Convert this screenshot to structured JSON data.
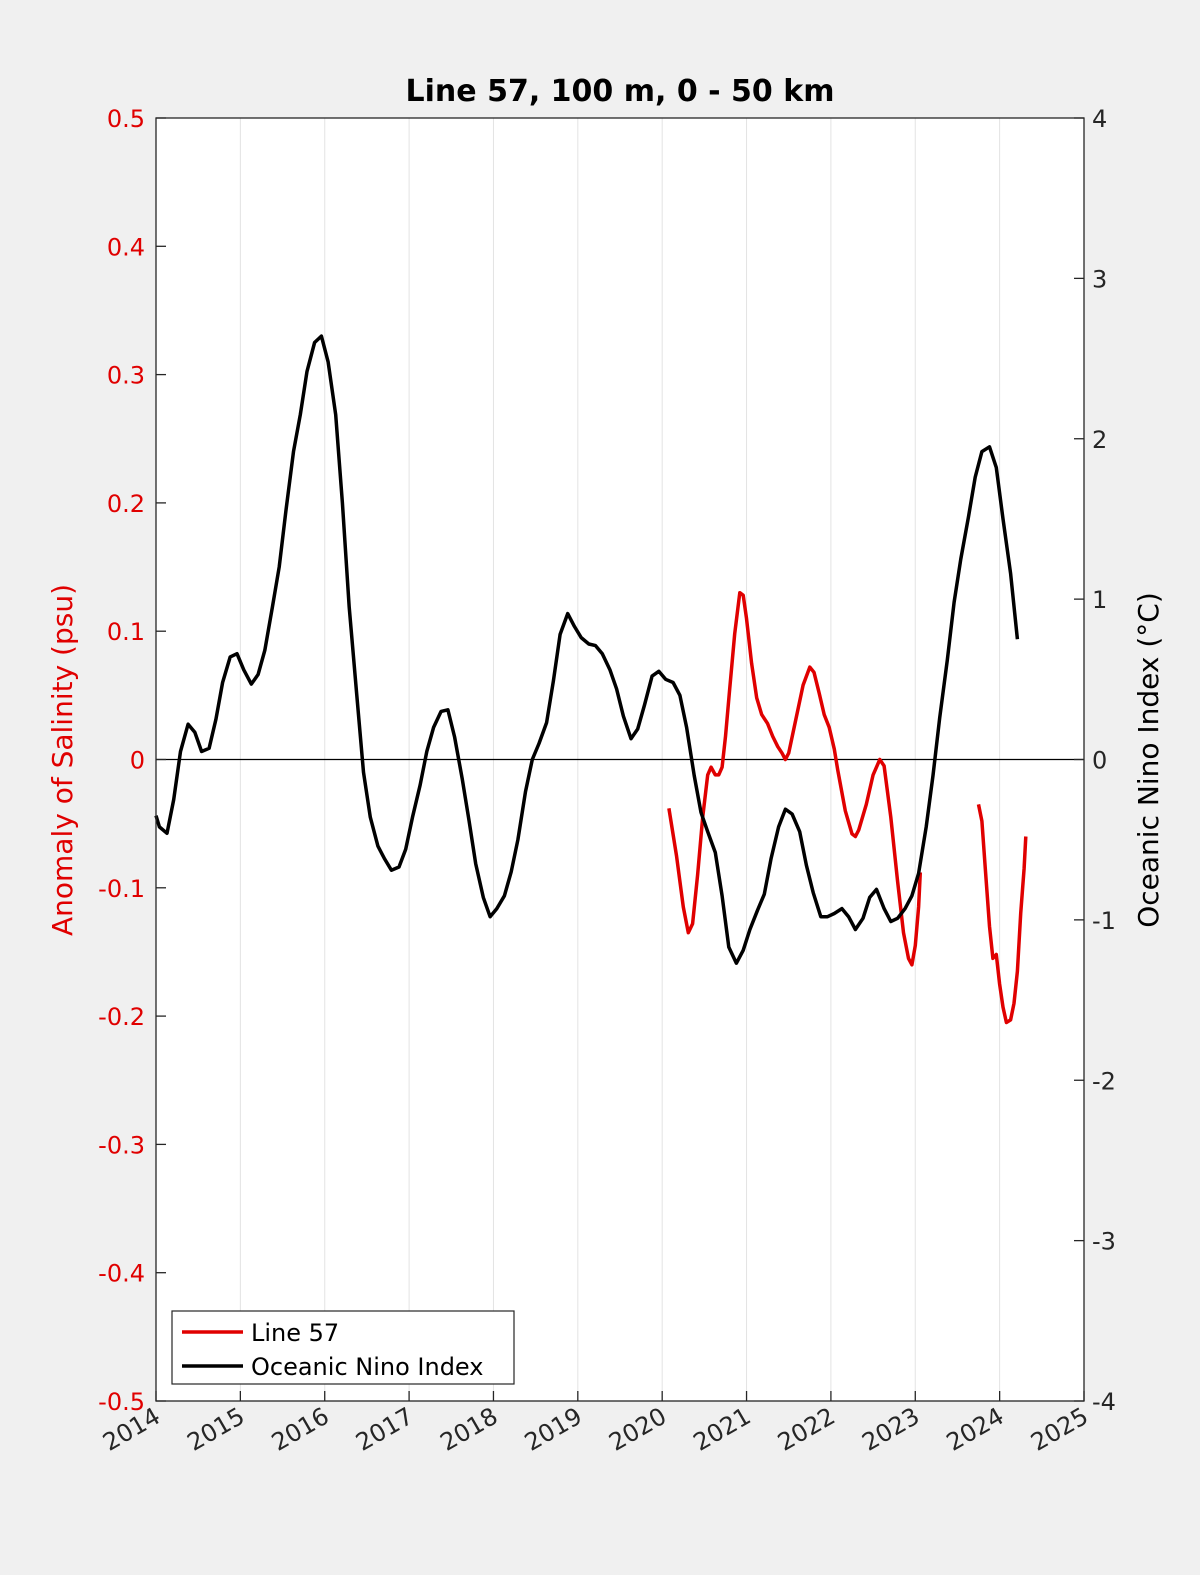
{
  "chart_data": {
    "type": "line",
    "title": "Line 57, 100 m, 0 - 50 km",
    "xlabel": "",
    "ylabel_left": "Anomaly of Salinity (psu)",
    "ylabel_right": "Oceanic Nino Index (°C)",
    "xlim": [
      2014,
      2025
    ],
    "ylim_left": [
      -0.5,
      0.5
    ],
    "ylim_right": [
      -4,
      4
    ],
    "x_ticks": [
      "2014",
      "2015",
      "2016",
      "2017",
      "2018",
      "2019",
      "2020",
      "2021",
      "2022",
      "2023",
      "2024",
      "2025"
    ],
    "y_ticks_left": [
      "-0.5",
      "-0.4",
      "-0.3",
      "-0.2",
      "-0.1",
      "0",
      "0.1",
      "0.2",
      "0.3",
      "0.4",
      "0.5"
    ],
    "y_ticks_right": [
      "-4",
      "-3",
      "-2",
      "-1",
      "0",
      "1",
      "2",
      "3",
      "4"
    ],
    "vertical_grid": true,
    "zero_line": true,
    "legend_position": "bottom-left",
    "series": [
      {
        "name": "Line 57",
        "axis": "left",
        "color": "#e00000",
        "segments": [
          [
            [
              2020.08,
              -0.038
            ],
            [
              2020.17,
              -0.075
            ],
            [
              2020.25,
              -0.115
            ],
            [
              2020.31,
              -0.135
            ],
            [
              2020.36,
              -0.128
            ],
            [
              2020.42,
              -0.09
            ],
            [
              2020.48,
              -0.045
            ],
            [
              2020.54,
              -0.012
            ],
            [
              2020.58,
              -0.006
            ],
            [
              2020.63,
              -0.012
            ],
            [
              2020.67,
              -0.012
            ],
            [
              2020.71,
              -0.006
            ],
            [
              2020.75,
              0.018
            ],
            [
              2020.8,
              0.055
            ],
            [
              2020.86,
              0.098
            ],
            [
              2020.92,
              0.13
            ],
            [
              2020.96,
              0.128
            ],
            [
              2021.0,
              0.11
            ],
            [
              2021.06,
              0.075
            ],
            [
              2021.12,
              0.048
            ],
            [
              2021.18,
              0.035
            ],
            [
              2021.25,
              0.028
            ],
            [
              2021.31,
              0.018
            ],
            [
              2021.37,
              0.01
            ],
            [
              2021.42,
              0.005
            ],
            [
              2021.46,
              0.0
            ],
            [
              2021.5,
              0.005
            ],
            [
              2021.58,
              0.03
            ],
            [
              2021.67,
              0.058
            ],
            [
              2021.75,
              0.072
            ],
            [
              2021.8,
              0.068
            ],
            [
              2021.86,
              0.052
            ],
            [
              2021.92,
              0.035
            ],
            [
              2021.98,
              0.025
            ],
            [
              2022.04,
              0.008
            ],
            [
              2022.08,
              -0.008
            ],
            [
              2022.17,
              -0.04
            ],
            [
              2022.25,
              -0.058
            ],
            [
              2022.29,
              -0.06
            ],
            [
              2022.33,
              -0.055
            ],
            [
              2022.42,
              -0.035
            ],
            [
              2022.5,
              -0.012
            ],
            [
              2022.58,
              0.0
            ],
            [
              2022.63,
              -0.005
            ],
            [
              2022.71,
              -0.045
            ],
            [
              2022.79,
              -0.095
            ],
            [
              2022.86,
              -0.135
            ],
            [
              2022.92,
              -0.155
            ],
            [
              2022.96,
              -0.16
            ],
            [
              2023.0,
              -0.145
            ],
            [
              2023.04,
              -0.115
            ],
            [
              2023.06,
              -0.088
            ]
          ],
          [
            [
              2023.75,
              -0.035
            ],
            [
              2023.79,
              -0.048
            ],
            [
              2023.83,
              -0.085
            ],
            [
              2023.88,
              -0.13
            ],
            [
              2023.92,
              -0.155
            ],
            [
              2023.96,
              -0.152
            ],
            [
              2024.0,
              -0.175
            ],
            [
              2024.04,
              -0.193
            ],
            [
              2024.08,
              -0.205
            ],
            [
              2024.13,
              -0.203
            ],
            [
              2024.17,
              -0.19
            ],
            [
              2024.21,
              -0.165
            ],
            [
              2024.25,
              -0.12
            ],
            [
              2024.29,
              -0.085
            ],
            [
              2024.31,
              -0.06
            ]
          ]
        ]
      },
      {
        "name": "Oceanic Nino Index",
        "axis": "right",
        "color": "#000000",
        "segments": [
          [
            [
              2014.0,
              -0.35
            ],
            [
              2014.04,
              -0.42
            ],
            [
              2014.13,
              -0.46
            ],
            [
              2014.21,
              -0.25
            ],
            [
              2014.29,
              0.05
            ],
            [
              2014.38,
              0.22
            ],
            [
              2014.46,
              0.17
            ],
            [
              2014.54,
              0.05
            ],
            [
              2014.63,
              0.07
            ],
            [
              2014.71,
              0.25
            ],
            [
              2014.79,
              0.48
            ],
            [
              2014.88,
              0.64
            ],
            [
              2014.96,
              0.66
            ],
            [
              2015.04,
              0.56
            ],
            [
              2015.13,
              0.47
            ],
            [
              2015.21,
              0.53
            ],
            [
              2015.29,
              0.68
            ],
            [
              2015.38,
              0.95
            ],
            [
              2015.46,
              1.2
            ],
            [
              2015.54,
              1.55
            ],
            [
              2015.63,
              1.92
            ],
            [
              2015.71,
              2.15
            ],
            [
              2015.79,
              2.42
            ],
            [
              2015.88,
              2.6
            ],
            [
              2015.96,
              2.64
            ],
            [
              2016.04,
              2.48
            ],
            [
              2016.13,
              2.15
            ],
            [
              2016.21,
              1.6
            ],
            [
              2016.29,
              0.95
            ],
            [
              2016.38,
              0.4
            ],
            [
              2016.46,
              -0.08
            ],
            [
              2016.54,
              -0.36
            ],
            [
              2016.63,
              -0.54
            ],
            [
              2016.71,
              -0.62
            ],
            [
              2016.79,
              -0.69
            ],
            [
              2016.88,
              -0.67
            ],
            [
              2016.96,
              -0.56
            ],
            [
              2017.04,
              -0.36
            ],
            [
              2017.13,
              -0.16
            ],
            [
              2017.21,
              0.05
            ],
            [
              2017.29,
              0.2
            ],
            [
              2017.38,
              0.3
            ],
            [
              2017.46,
              0.31
            ],
            [
              2017.54,
              0.14
            ],
            [
              2017.63,
              -0.12
            ],
            [
              2017.71,
              -0.38
            ],
            [
              2017.79,
              -0.65
            ],
            [
              2017.88,
              -0.86
            ],
            [
              2017.96,
              -0.98
            ],
            [
              2018.04,
              -0.93
            ],
            [
              2018.13,
              -0.85
            ],
            [
              2018.21,
              -0.7
            ],
            [
              2018.29,
              -0.5
            ],
            [
              2018.38,
              -0.2
            ],
            [
              2018.46,
              0.0
            ],
            [
              2018.54,
              0.1
            ],
            [
              2018.63,
              0.23
            ],
            [
              2018.71,
              0.49
            ],
            [
              2018.79,
              0.78
            ],
            [
              2018.88,
              0.91
            ],
            [
              2018.96,
              0.83
            ],
            [
              2019.04,
              0.76
            ],
            [
              2019.13,
              0.72
            ],
            [
              2019.21,
              0.71
            ],
            [
              2019.29,
              0.66
            ],
            [
              2019.38,
              0.56
            ],
            [
              2019.46,
              0.44
            ],
            [
              2019.54,
              0.27
            ],
            [
              2019.63,
              0.13
            ],
            [
              2019.71,
              0.19
            ],
            [
              2019.79,
              0.34
            ],
            [
              2019.88,
              0.52
            ],
            [
              2019.96,
              0.55
            ],
            [
              2020.04,
              0.5
            ],
            [
              2020.13,
              0.48
            ],
            [
              2020.21,
              0.4
            ],
            [
              2020.29,
              0.2
            ],
            [
              2020.38,
              -0.1
            ],
            [
              2020.46,
              -0.33
            ],
            [
              2020.54,
              -0.45
            ],
            [
              2020.63,
              -0.58
            ],
            [
              2020.71,
              -0.85
            ],
            [
              2020.79,
              -1.17
            ],
            [
              2020.88,
              -1.27
            ],
            [
              2020.96,
              -1.19
            ],
            [
              2021.04,
              -1.06
            ],
            [
              2021.13,
              -0.94
            ],
            [
              2021.21,
              -0.84
            ],
            [
              2021.29,
              -0.62
            ],
            [
              2021.38,
              -0.42
            ],
            [
              2021.46,
              -0.31
            ],
            [
              2021.54,
              -0.34
            ],
            [
              2021.63,
              -0.45
            ],
            [
              2021.71,
              -0.66
            ],
            [
              2021.79,
              -0.83
            ],
            [
              2021.88,
              -0.98
            ],
            [
              2021.96,
              -0.98
            ],
            [
              2022.04,
              -0.96
            ],
            [
              2022.13,
              -0.93
            ],
            [
              2022.21,
              -0.98
            ],
            [
              2022.29,
              -1.06
            ],
            [
              2022.38,
              -0.99
            ],
            [
              2022.46,
              -0.86
            ],
            [
              2022.54,
              -0.81
            ],
            [
              2022.63,
              -0.93
            ],
            [
              2022.71,
              -1.01
            ],
            [
              2022.79,
              -0.99
            ],
            [
              2022.88,
              -0.93
            ],
            [
              2022.96,
              -0.85
            ],
            [
              2023.04,
              -0.71
            ],
            [
              2023.13,
              -0.42
            ],
            [
              2023.21,
              -0.1
            ],
            [
              2023.29,
              0.26
            ],
            [
              2023.38,
              0.62
            ],
            [
              2023.46,
              0.98
            ],
            [
              2023.54,
              1.25
            ],
            [
              2023.63,
              1.51
            ],
            [
              2023.71,
              1.76
            ],
            [
              2023.79,
              1.92
            ],
            [
              2023.88,
              1.95
            ],
            [
              2023.96,
              1.82
            ],
            [
              2024.04,
              1.5
            ],
            [
              2024.13,
              1.16
            ],
            [
              2024.21,
              0.75
            ]
          ]
        ]
      }
    ]
  }
}
